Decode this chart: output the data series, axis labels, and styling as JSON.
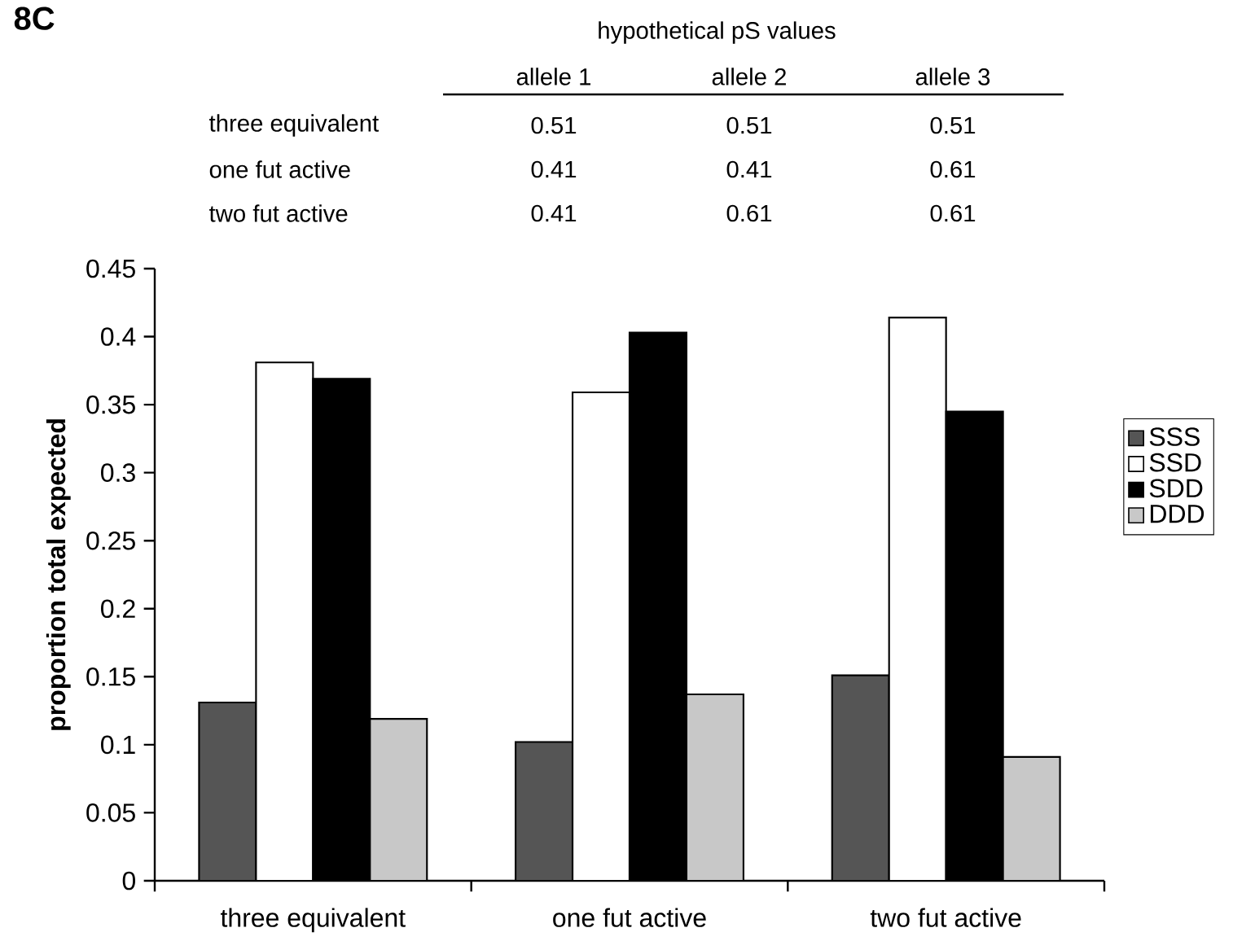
{
  "chart_data": {
    "type": "bar",
    "title": "8C",
    "annotations": [
      "hypothetical pS values",
      "allele 1",
      "allele 2",
      "allele 3",
      "three equivalent",
      "0.51",
      "0.51",
      "0.51",
      "one fut active",
      "0.41",
      "0.41",
      "0.61",
      "two fut active",
      "0.41",
      "0.61",
      "0.61"
    ],
    "ylabel": "proportion total expected",
    "categories": [
      "three equivalent",
      "one fut active",
      "two fut active"
    ],
    "series": [
      {
        "name": "SSS",
        "color": "#555555",
        "values": [
          0.131,
          0.102,
          0.151
        ]
      },
      {
        "name": "SSD",
        "color": "#ffffff",
        "values": [
          0.381,
          0.359,
          0.414
        ]
      },
      {
        "name": "SDD",
        "color": "#000000",
        "values": [
          0.369,
          0.403,
          0.345
        ]
      },
      {
        "name": "DDD",
        "color": "#c8c8c8",
        "values": [
          0.119,
          0.137,
          0.091
        ]
      }
    ],
    "ylim": [
      0,
      0.45
    ],
    "yticks": [
      0,
      0.05,
      0.1,
      0.15,
      0.2,
      0.25,
      0.3,
      0.35,
      0.4,
      0.45
    ],
    "grid": false,
    "legend": "right"
  }
}
